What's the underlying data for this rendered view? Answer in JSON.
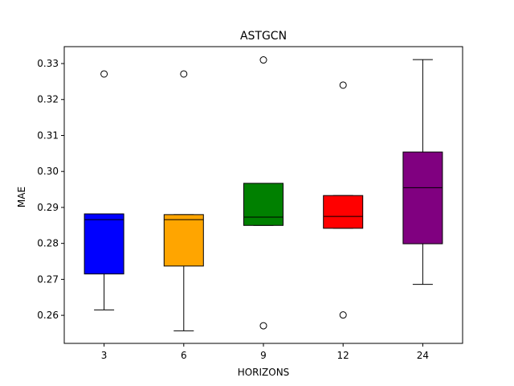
{
  "chart_data": {
    "type": "box",
    "title": "ASTGCN",
    "xlabel": "HORIZONS",
    "ylabel": "MAE",
    "categories": [
      "3",
      "6",
      "9",
      "12",
      "24"
    ],
    "ylim": [
      0.2522,
      0.3347
    ],
    "yticks": [
      "0.26",
      "0.27",
      "0.28",
      "0.29",
      "0.30",
      "0.31",
      "0.32",
      "0.33"
    ],
    "grid": false,
    "boxes": [
      {
        "category": "3",
        "color": "#0000ff",
        "whisker_low": 0.2615,
        "q1": 0.2715,
        "median": 0.2866,
        "q3": 0.2882,
        "whisker_high": 0.2882,
        "fliers": [
          0.3271
        ]
      },
      {
        "category": "6",
        "color": "#ffa500",
        "whisker_low": 0.2557,
        "q1": 0.2737,
        "median": 0.2866,
        "q3": 0.288,
        "whisker_high": 0.288,
        "fliers": [
          0.3271
        ]
      },
      {
        "category": "9",
        "color": "#008000",
        "whisker_low": 0.285,
        "q1": 0.285,
        "median": 0.2873,
        "q3": 0.2967,
        "whisker_high": 0.2967,
        "fliers": [
          0.331,
          0.2571
        ]
      },
      {
        "category": "12",
        "color": "#ff0000",
        "whisker_low": 0.2842,
        "q1": 0.2842,
        "median": 0.2875,
        "q3": 0.2933,
        "whisker_high": 0.2933,
        "fliers": [
          0.324,
          0.2601
        ]
      },
      {
        "category": "24",
        "color": "#800080",
        "whisker_low": 0.2686,
        "q1": 0.2799,
        "median": 0.2955,
        "q3": 0.3054,
        "whisker_high": 0.3311,
        "fliers": []
      }
    ]
  }
}
